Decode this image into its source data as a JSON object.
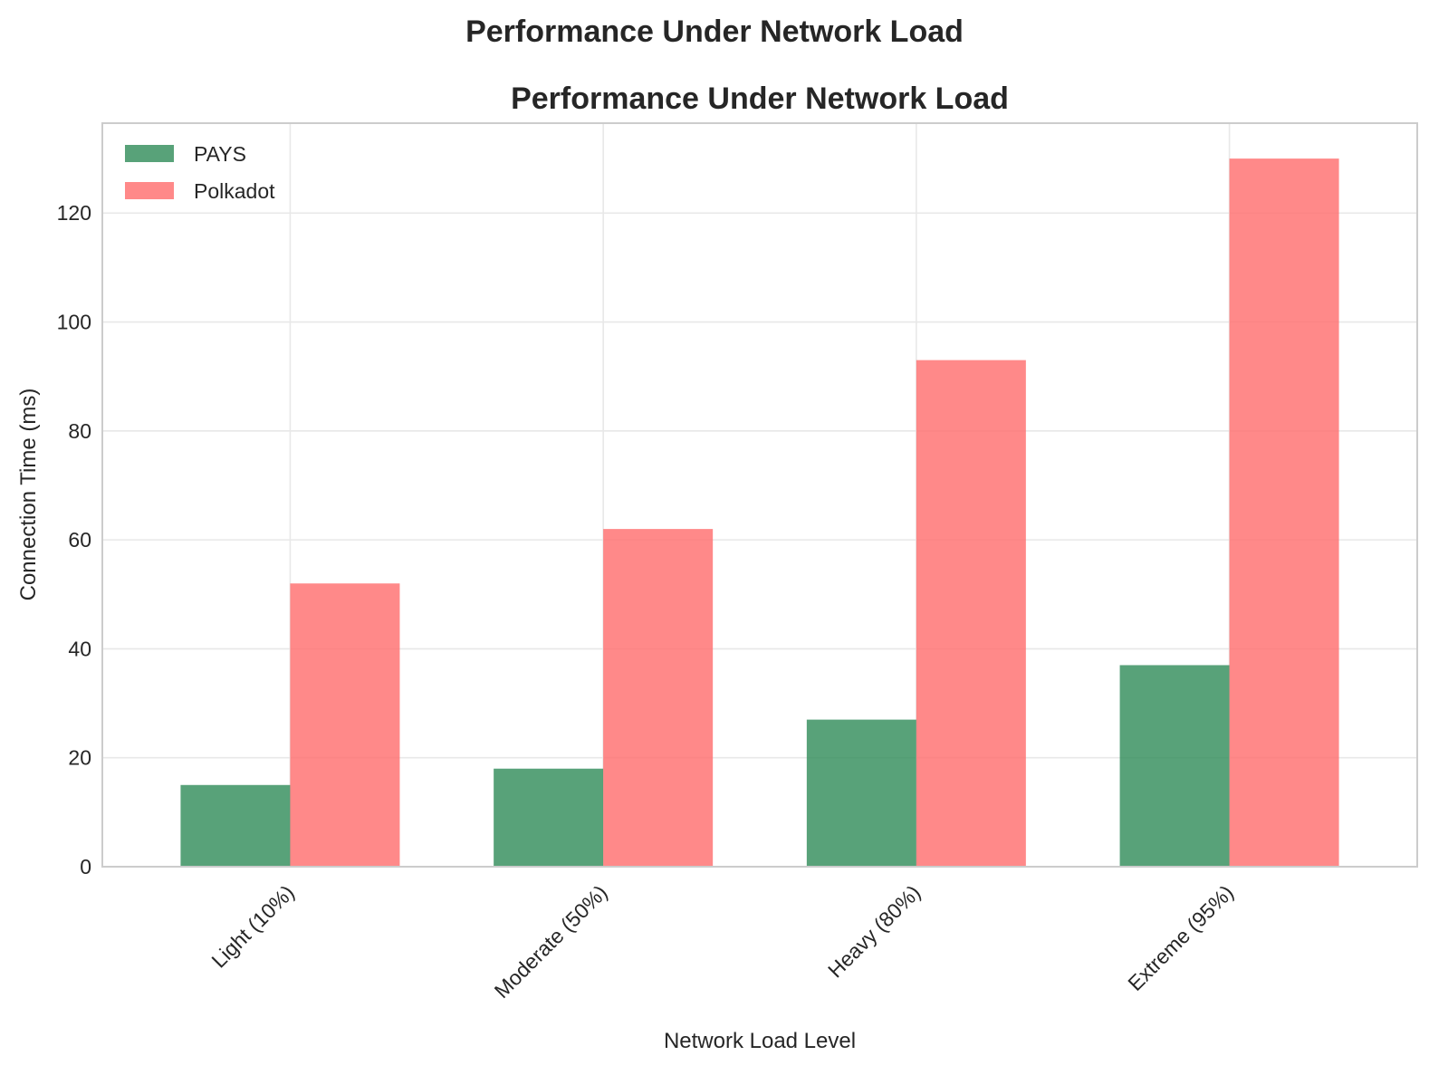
{
  "figure": {
    "suptitle": "Performance Under Network Load"
  },
  "chart_data": {
    "type": "bar",
    "title": "Performance Under Network Load",
    "xlabel": "Network Load Level",
    "ylabel": "Connection Time (ms)",
    "categories": [
      "Light (10%)",
      "Moderate (50%)",
      "Heavy (80%)",
      "Extreme (95%)"
    ],
    "series": [
      {
        "name": "PAYS",
        "values": [
          15,
          18,
          27,
          37
        ],
        "color": "#2e8b57"
      },
      {
        "name": "Polkadot",
        "values": [
          52,
          62,
          93,
          130
        ],
        "color": "#ff6b6b"
      }
    ],
    "ylim": [
      0,
      136.5
    ],
    "yticks": [
      0,
      20,
      40,
      60,
      80,
      100,
      120
    ],
    "grid": true,
    "legend_position": "upper-left"
  }
}
